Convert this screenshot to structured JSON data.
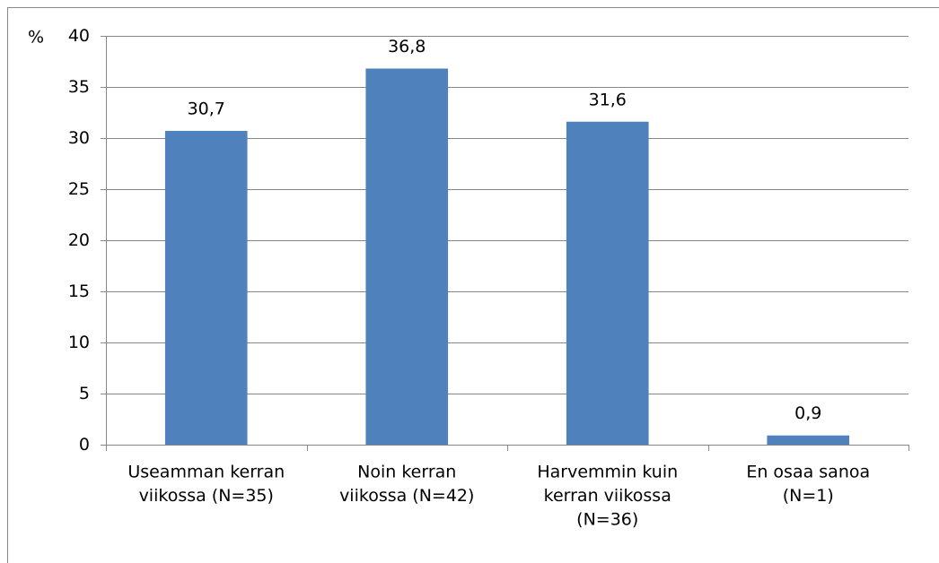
{
  "chart_data": {
    "type": "bar",
    "y_label": "%",
    "categories": [
      [
        "Useamman kerran",
        "viikossa (N=35)"
      ],
      [
        "Noin kerran",
        "viikossa (N=42)"
      ],
      [
        "Harvemmin kuin",
        "kerran viikossa",
        "(N=36)"
      ],
      [
        "En osaa sanoa",
        "(N=1)"
      ]
    ],
    "values": [
      30.7,
      36.8,
      31.6,
      0.9
    ],
    "value_labels": [
      "30,7",
      "36,8",
      "31,6",
      "0,9"
    ],
    "color": "#4f81bd",
    "ylim": [
      0,
      40
    ],
    "yticks": [
      0,
      5,
      10,
      15,
      20,
      25,
      30,
      35,
      40
    ],
    "grid": true
  }
}
